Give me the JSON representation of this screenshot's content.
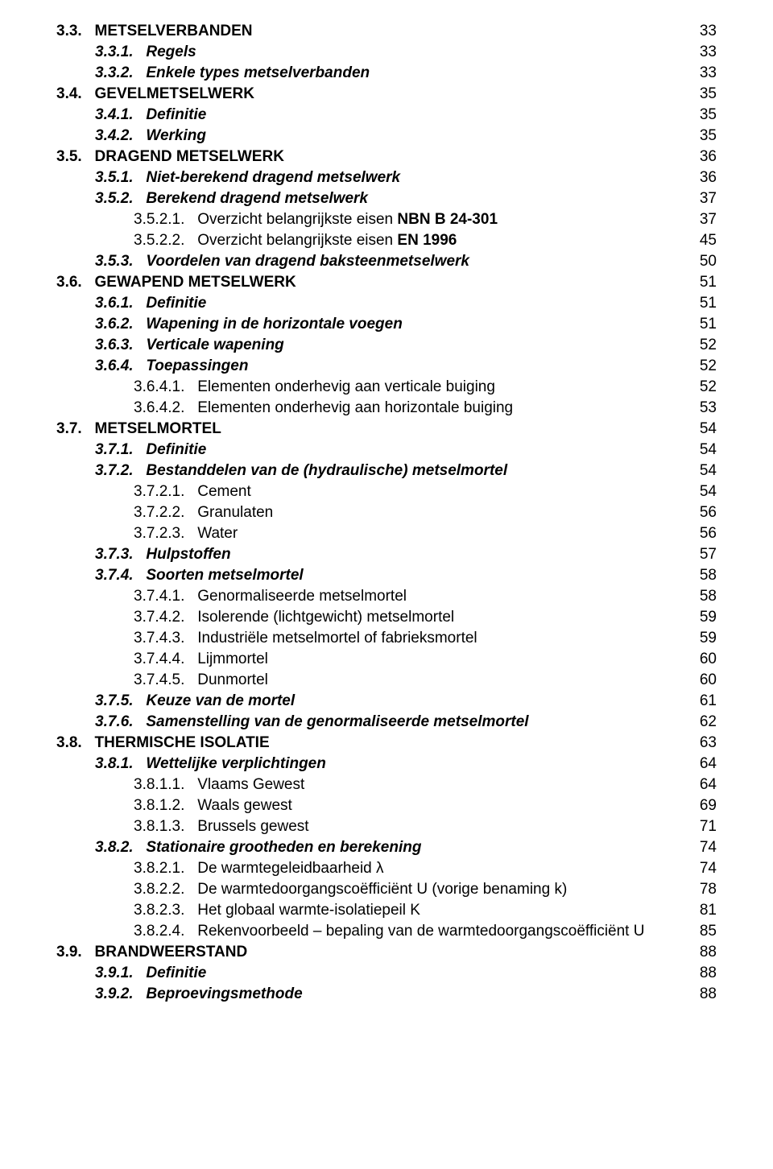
{
  "text_color": "#000000",
  "background_color": "#ffffff",
  "font_family": "Verdana, Geneva, sans-serif",
  "base_fontsize_pt": 14,
  "rows": [
    {
      "num": "3.3.",
      "title": "METSELVERBANDEN",
      "page": "33",
      "lvl": 1,
      "ind": 1
    },
    {
      "num": "3.3.1.",
      "title": "Regels",
      "page": "33",
      "lvl": 2,
      "ind": 2
    },
    {
      "num": "3.3.2.",
      "title": "Enkele types metselverbanden",
      "page": "33",
      "lvl": 2,
      "ind": 2
    },
    {
      "num": "3.4.",
      "title": "GEVELMETSELWERK",
      "page": "35",
      "lvl": 1,
      "ind": 1
    },
    {
      "num": "3.4.1.",
      "title": "Definitie",
      "page": "35",
      "lvl": 2,
      "ind": 2
    },
    {
      "num": "3.4.2.",
      "title": "Werking",
      "page": "35",
      "lvl": 2,
      "ind": 2
    },
    {
      "num": "3.5.",
      "title": "DRAGEND METSELWERK",
      "page": "36",
      "lvl": 1,
      "ind": 1
    },
    {
      "num": "3.5.1.",
      "title": "Niet-berekend dragend metselwerk",
      "page": "36",
      "lvl": 2,
      "ind": 2
    },
    {
      "num": "3.5.2.",
      "title": "Berekend dragend metselwerk",
      "page": "37",
      "lvl": 2,
      "ind": 2
    },
    {
      "num": "3.5.2.1.",
      "title": "Overzicht belangrijkste eisen NBN B 24-301",
      "page": "37",
      "lvl": 3,
      "ind": 3,
      "boldTail": "NBN B 24-301"
    },
    {
      "num": "3.5.2.2.",
      "title": "Overzicht belangrijkste eisen EN 1996",
      "page": "45",
      "lvl": 3,
      "ind": 3,
      "boldTail": "EN 1996"
    },
    {
      "num": "3.5.3.",
      "title": "Voordelen van dragend baksteenmetselwerk",
      "page": "50",
      "lvl": 2,
      "ind": 2
    },
    {
      "num": "3.6.",
      "title": "GEWAPEND METSELWERK",
      "page": "51",
      "lvl": 1,
      "ind": 1
    },
    {
      "num": "3.6.1.",
      "title": "Definitie",
      "page": "51",
      "lvl": 2,
      "ind": 2
    },
    {
      "num": "3.6.2.",
      "title": "Wapening in de horizontale voegen",
      "page": "51",
      "lvl": 2,
      "ind": 2
    },
    {
      "num": "3.6.3.",
      "title": "Verticale wapening",
      "page": "52",
      "lvl": 2,
      "ind": 2
    },
    {
      "num": "3.6.4.",
      "title": "Toepassingen",
      "page": "52",
      "lvl": 2,
      "ind": 2
    },
    {
      "num": "3.6.4.1.",
      "title": "Elementen onderhevig aan verticale buiging",
      "page": "52",
      "lvl": 3,
      "ind": 3
    },
    {
      "num": "3.6.4.2.",
      "title": "Elementen onderhevig aan horizontale buiging",
      "page": "53",
      "lvl": 3,
      "ind": 3
    },
    {
      "num": "3.7.",
      "title": "METSELMORTEL",
      "page": "54",
      "lvl": 1,
      "ind": 1
    },
    {
      "num": "3.7.1.",
      "title": "Definitie",
      "page": "54",
      "lvl": 2,
      "ind": 2
    },
    {
      "num": "3.7.2.",
      "title": "Bestanddelen van de (hydraulische) metselmortel",
      "page": "54",
      "lvl": 2,
      "ind": 2
    },
    {
      "num": "3.7.2.1.",
      "title": "Cement",
      "page": "54",
      "lvl": 3,
      "ind": 3
    },
    {
      "num": "3.7.2.2.",
      "title": "Granulaten",
      "page": "56",
      "lvl": 3,
      "ind": 3
    },
    {
      "num": "3.7.2.3.",
      "title": "Water",
      "page": "56",
      "lvl": 3,
      "ind": 3
    },
    {
      "num": "3.7.3.",
      "title": "Hulpstoffen",
      "page": "57",
      "lvl": 2,
      "ind": 2
    },
    {
      "num": "3.7.4.",
      "title": "Soorten metselmortel",
      "page": "58",
      "lvl": 2,
      "ind": 2
    },
    {
      "num": "3.7.4.1.",
      "title": "Genormaliseerde metselmortel",
      "page": "58",
      "lvl": 3,
      "ind": 3
    },
    {
      "num": "3.7.4.2.",
      "title": "Isolerende (lichtgewicht) metselmortel",
      "page": "59",
      "lvl": 3,
      "ind": 3
    },
    {
      "num": "3.7.4.3.",
      "title": "Industriële metselmortel of fabrieksmortel",
      "page": "59",
      "lvl": 3,
      "ind": 3
    },
    {
      "num": "3.7.4.4.",
      "title": "Lijmmortel",
      "page": "60",
      "lvl": 3,
      "ind": 3
    },
    {
      "num": "3.7.4.5.",
      "title": "Dunmortel",
      "page": "60",
      "lvl": 3,
      "ind": 3
    },
    {
      "num": "3.7.5.",
      "title": "Keuze van de mortel",
      "page": "61",
      "lvl": 2,
      "ind": 2
    },
    {
      "num": "3.7.6.",
      "title": "Samenstelling van de genormaliseerde metselmortel",
      "page": "62",
      "lvl": 2,
      "ind": 2
    },
    {
      "num": "3.8.",
      "title": "THERMISCHE ISOLATIE",
      "page": "63",
      "lvl": 1,
      "ind": 1
    },
    {
      "num": "3.8.1.",
      "title": "Wettelijke verplichtingen",
      "page": "64",
      "lvl": 2,
      "ind": 2
    },
    {
      "num": "3.8.1.1.",
      "title": "Vlaams Gewest",
      "page": "64",
      "lvl": 3,
      "ind": 3
    },
    {
      "num": "3.8.1.2.",
      "title": "Waals gewest",
      "page": "69",
      "lvl": 3,
      "ind": 3
    },
    {
      "num": "3.8.1.3.",
      "title": "Brussels gewest",
      "page": "71",
      "lvl": 3,
      "ind": 3
    },
    {
      "num": "3.8.2.",
      "title": "Stationaire grootheden en berekening",
      "page": "74",
      "lvl": 2,
      "ind": 2
    },
    {
      "num": "3.8.2.1.",
      "title": "De warmtegeleidbaarheid λ",
      "page": "74",
      "lvl": 3,
      "ind": 3
    },
    {
      "num": "3.8.2.2.",
      "title": "De warmtedoorgangscoëfficiënt U (vorige benaming k)",
      "page": "78",
      "lvl": 3,
      "ind": 3
    },
    {
      "num": "3.8.2.3.",
      "title": "Het globaal warmte-isolatiepeil K",
      "page": "81",
      "lvl": 3,
      "ind": 3
    },
    {
      "num": "3.8.2.4.",
      "title": "Rekenvoorbeeld – bepaling van de warmtedoorgangscoëfficiënt U",
      "page": "85",
      "lvl": 3,
      "ind": 3
    },
    {
      "num": "3.9.",
      "title": "BRANDWEERSTAND",
      "page": "88",
      "lvl": 1,
      "ind": 1
    },
    {
      "num": "3.9.1.",
      "title": "Definitie",
      "page": "88",
      "lvl": 2,
      "ind": 2
    },
    {
      "num": "3.9.2.",
      "title": "Beproevingsmethode",
      "page": "88",
      "lvl": 2,
      "ind": 2
    }
  ]
}
